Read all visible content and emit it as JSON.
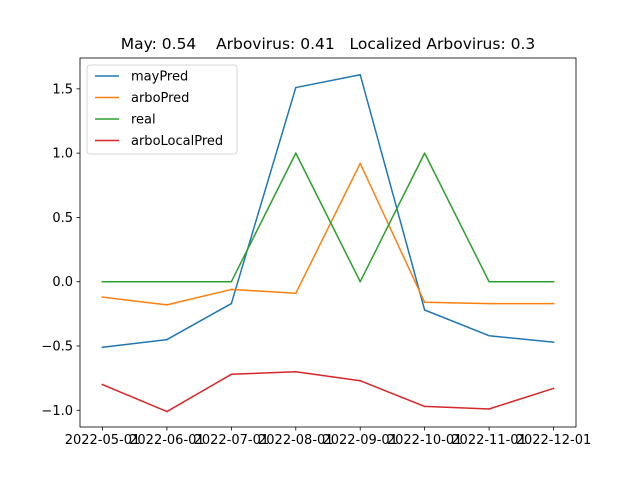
{
  "chart_data": {
    "type": "line",
    "title": "May: 0.54    Arbovirus: 0.41   Localized Arbovirus: 0.3",
    "xlabel": "",
    "ylabel": "",
    "categories": [
      "2022-05-01",
      "2022-06-01",
      "2022-07-01",
      "2022-08-01",
      "2022-09-01",
      "2022-10-01",
      "2022-11-01",
      "2022-12-01"
    ],
    "ylim": [
      -1.13,
      1.74
    ],
    "yticks": [
      -1.0,
      -0.5,
      0.0,
      0.5,
      1.0,
      1.5
    ],
    "ytick_labels": [
      "−1.0",
      "−0.5",
      "0.0",
      "0.5",
      "1.0",
      "1.5"
    ],
    "grid": false,
    "legend_position": "upper-left",
    "series": [
      {
        "name": "mayPred",
        "color": "#1f77b4",
        "values": [
          -0.51,
          -0.45,
          -0.17,
          1.51,
          1.61,
          -0.22,
          -0.42,
          -0.47
        ]
      },
      {
        "name": "arboPred",
        "color": "#ff7f0e",
        "values": [
          -0.12,
          -0.18,
          -0.06,
          -0.09,
          0.92,
          -0.16,
          -0.17,
          -0.17
        ]
      },
      {
        "name": "real",
        "color": "#2ca02c",
        "values": [
          0,
          0,
          0,
          1,
          0,
          1,
          0,
          0
        ]
      },
      {
        "name": "arboLocalPred",
        "color": "#d62728",
        "values": [
          -0.8,
          -1.01,
          -0.72,
          -0.7,
          -0.77,
          -0.97,
          -0.99,
          -0.83
        ]
      }
    ]
  }
}
